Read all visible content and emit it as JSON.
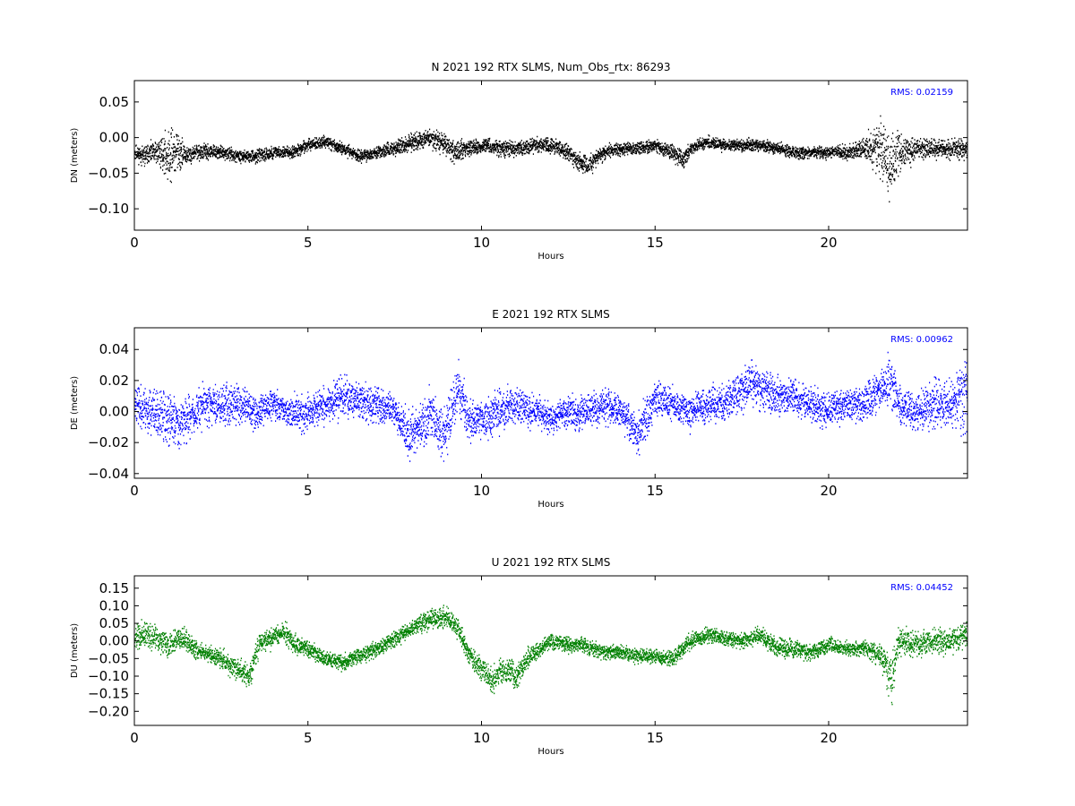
{
  "chart_data": [
    {
      "type": "scatter",
      "title": "N 2021 192 RTX  SLMS, Num_Obs_rtx: 86293",
      "xlabel": "Hours",
      "ylabel": "DN (meters)",
      "xlim": [
        0,
        24
      ],
      "ylim": [
        -0.13,
        0.08
      ],
      "xticks": [
        0,
        5,
        10,
        15,
        20
      ],
      "yticks": [
        0.05,
        0.0,
        -0.05,
        -0.1
      ],
      "ytick_labels": [
        "0.05",
        "0.00",
        "−0.05",
        "−0.10"
      ],
      "rms_text": "RMS:  0.02159",
      "rms_color": "#0000ff",
      "color": "#000000",
      "grid": false,
      "series": [
        {
          "x": [
            0,
            0.25,
            0.5,
            0.75,
            1.0,
            1.1,
            1.25,
            1.5,
            1.75,
            2,
            2.5,
            3,
            3.5,
            4,
            4.5,
            5,
            5.5,
            6,
            6.5,
            7,
            7.5,
            8,
            8.5,
            9,
            9.2,
            9.5,
            10,
            10.5,
            11,
            11.5,
            12,
            12.5,
            12.8,
            13,
            13.5,
            14,
            14.5,
            15,
            15.5,
            15.8,
            16,
            16.5,
            17,
            17.5,
            18,
            18.5,
            19,
            19.5,
            20,
            20.5,
            21,
            21.5,
            21.8,
            22,
            22.5,
            23,
            23.5,
            24
          ],
          "y": [
            -0.02,
            -0.025,
            -0.02,
            -0.02,
            -0.025,
            -0.02,
            -0.02,
            -0.025,
            -0.02,
            -0.02,
            -0.02,
            -0.025,
            -0.025,
            -0.02,
            -0.02,
            -0.01,
            -0.005,
            -0.015,
            -0.025,
            -0.02,
            -0.015,
            -0.005,
            0.0,
            -0.01,
            -0.02,
            -0.015,
            -0.01,
            -0.015,
            -0.015,
            -0.01,
            -0.01,
            -0.02,
            -0.035,
            -0.04,
            -0.02,
            -0.015,
            -0.015,
            -0.01,
            -0.02,
            -0.03,
            -0.015,
            -0.005,
            -0.01,
            -0.01,
            -0.01,
            -0.015,
            -0.02,
            -0.02,
            -0.02,
            -0.02,
            -0.015,
            -0.015,
            -0.04,
            -0.02,
            -0.015,
            -0.015,
            -0.015,
            -0.015
          ],
          "spread": [
            0.015,
            0.018,
            0.02,
            0.03,
            0.05,
            0.055,
            0.04,
            0.02,
            0.015,
            0.015,
            0.012,
            0.012,
            0.012,
            0.012,
            0.012,
            0.012,
            0.012,
            0.012,
            0.012,
            0.012,
            0.015,
            0.018,
            0.018,
            0.02,
            0.025,
            0.015,
            0.015,
            0.015,
            0.015,
            0.015,
            0.015,
            0.015,
            0.018,
            0.02,
            0.015,
            0.012,
            0.012,
            0.012,
            0.015,
            0.02,
            0.012,
            0.012,
            0.012,
            0.012,
            0.012,
            0.012,
            0.012,
            0.012,
            0.012,
            0.015,
            0.018,
            0.06,
            0.07,
            0.04,
            0.02,
            0.02,
            0.02,
            0.02
          ]
        }
      ]
    },
    {
      "type": "scatter",
      "title": "E 2021 192 RTX  SLMS",
      "xlabel": "Hours",
      "ylabel": "DE (meters)",
      "xlim": [
        0,
        24
      ],
      "ylim": [
        -0.043,
        0.054
      ],
      "xticks": [
        0,
        5,
        10,
        15,
        20
      ],
      "yticks": [
        0.04,
        0.02,
        0.0,
        -0.02,
        -0.04
      ],
      "ytick_labels": [
        "0.04",
        "0.02",
        "0.00",
        "−0.02",
        "−0.04"
      ],
      "rms_text": "RMS:  0.00962",
      "rms_color": "#0000ff",
      "color": "#0000ff",
      "grid": false,
      "series": [
        {
          "x": [
            0,
            0.5,
            1,
            1.5,
            2,
            2.5,
            3,
            3.5,
            4,
            4.5,
            5,
            5.5,
            6,
            6.5,
            7,
            7.5,
            7.9,
            8.2,
            8.5,
            8.9,
            9.3,
            9.6,
            10,
            10.5,
            11,
            11.5,
            12,
            12.5,
            13,
            13.5,
            14,
            14.5,
            15,
            15.5,
            16,
            16.5,
            17,
            17.5,
            17.8,
            18,
            18.5,
            19,
            19.5,
            20,
            20.5,
            21,
            21.5,
            21.8,
            22,
            22.5,
            23,
            23.5,
            24
          ],
          "y": [
            0.005,
            0.0,
            -0.005,
            -0.005,
            0.005,
            0.005,
            0.005,
            0.0,
            0.005,
            0.0,
            0.0,
            0.005,
            0.01,
            0.008,
            0.005,
            0.0,
            -0.015,
            -0.01,
            0.0,
            -0.015,
            0.015,
            -0.005,
            -0.005,
            0.0,
            0.005,
            0.0,
            -0.005,
            0.0,
            0.0,
            0.005,
            0.0,
            -0.015,
            0.01,
            0.005,
            0.0,
            0.005,
            0.005,
            0.015,
            0.02,
            0.015,
            0.01,
            0.01,
            0.005,
            0.0,
            0.005,
            0.005,
            0.015,
            0.02,
            0.005,
            0.0,
            0.005,
            0.005,
            0.01
          ],
          "spread": [
            0.02,
            0.02,
            0.025,
            0.02,
            0.018,
            0.018,
            0.018,
            0.015,
            0.015,
            0.015,
            0.015,
            0.015,
            0.018,
            0.018,
            0.015,
            0.015,
            0.02,
            0.02,
            0.02,
            0.025,
            0.025,
            0.02,
            0.018,
            0.018,
            0.018,
            0.015,
            0.015,
            0.015,
            0.015,
            0.015,
            0.015,
            0.02,
            0.015,
            0.015,
            0.015,
            0.015,
            0.018,
            0.02,
            0.02,
            0.02,
            0.018,
            0.015,
            0.015,
            0.015,
            0.015,
            0.015,
            0.02,
            0.025,
            0.018,
            0.018,
            0.02,
            0.025,
            0.035
          ]
        }
      ]
    },
    {
      "type": "scatter",
      "title": "U 2021 192 RTX  SLMS",
      "xlabel": "Hours",
      "ylabel": "DU (meters)",
      "xlim": [
        0,
        24
      ],
      "ylim": [
        -0.24,
        0.185
      ],
      "xticks": [
        0,
        5,
        10,
        15,
        20
      ],
      "yticks": [
        0.15,
        0.1,
        0.05,
        0.0,
        -0.05,
        -0.1,
        -0.15,
        -0.2
      ],
      "ytick_labels": [
        "0.15",
        "0.10",
        "0.05",
        "0.00",
        "−0.05",
        "−0.10",
        "−0.15",
        "−0.20"
      ],
      "rms_text": "RMS:  0.04452",
      "rms_color": "#0000ff",
      "color": "#008000",
      "grid": false,
      "series": [
        {
          "x": [
            0,
            0.3,
            0.7,
            1,
            1.3,
            1.7,
            2,
            2.5,
            3,
            3.3,
            3.6,
            4,
            4.3,
            4.6,
            5,
            5.5,
            6,
            6.5,
            7,
            7.5,
            8,
            8.5,
            9,
            9.3,
            9.6,
            10,
            10.3,
            10.6,
            11,
            11.3,
            11.7,
            12,
            12.5,
            13,
            13.5,
            14,
            14.5,
            15,
            15.5,
            16,
            16.5,
            17,
            17.5,
            18,
            18.5,
            19,
            19.5,
            20,
            20.5,
            21,
            21.5,
            21.8,
            22,
            22.5,
            23,
            23.5,
            24
          ],
          "y": [
            0.01,
            0.02,
            0.0,
            -0.01,
            0.02,
            -0.02,
            -0.03,
            -0.05,
            -0.08,
            -0.1,
            0.0,
            0.01,
            0.03,
            -0.01,
            -0.02,
            -0.05,
            -0.06,
            -0.04,
            -0.02,
            0.01,
            0.04,
            0.06,
            0.07,
            0.04,
            -0.03,
            -0.08,
            -0.11,
            -0.08,
            -0.1,
            -0.05,
            -0.02,
            0.0,
            -0.01,
            -0.01,
            -0.03,
            -0.03,
            -0.04,
            -0.04,
            -0.05,
            0.0,
            0.02,
            0.01,
            0.0,
            0.02,
            -0.02,
            -0.02,
            -0.03,
            -0.01,
            -0.02,
            -0.02,
            -0.04,
            -0.11,
            0.0,
            -0.01,
            0.0,
            0.0,
            0.02
          ],
          "spread": [
            0.05,
            0.05,
            0.05,
            0.05,
            0.05,
            0.04,
            0.03,
            0.04,
            0.04,
            0.05,
            0.04,
            0.04,
            0.04,
            0.04,
            0.03,
            0.03,
            0.03,
            0.03,
            0.03,
            0.03,
            0.03,
            0.04,
            0.04,
            0.04,
            0.04,
            0.05,
            0.05,
            0.05,
            0.05,
            0.04,
            0.03,
            0.03,
            0.03,
            0.03,
            0.03,
            0.03,
            0.03,
            0.03,
            0.03,
            0.03,
            0.03,
            0.03,
            0.03,
            0.03,
            0.04,
            0.04,
            0.03,
            0.03,
            0.03,
            0.03,
            0.05,
            0.1,
            0.06,
            0.05,
            0.05,
            0.05,
            0.05
          ]
        }
      ]
    }
  ]
}
